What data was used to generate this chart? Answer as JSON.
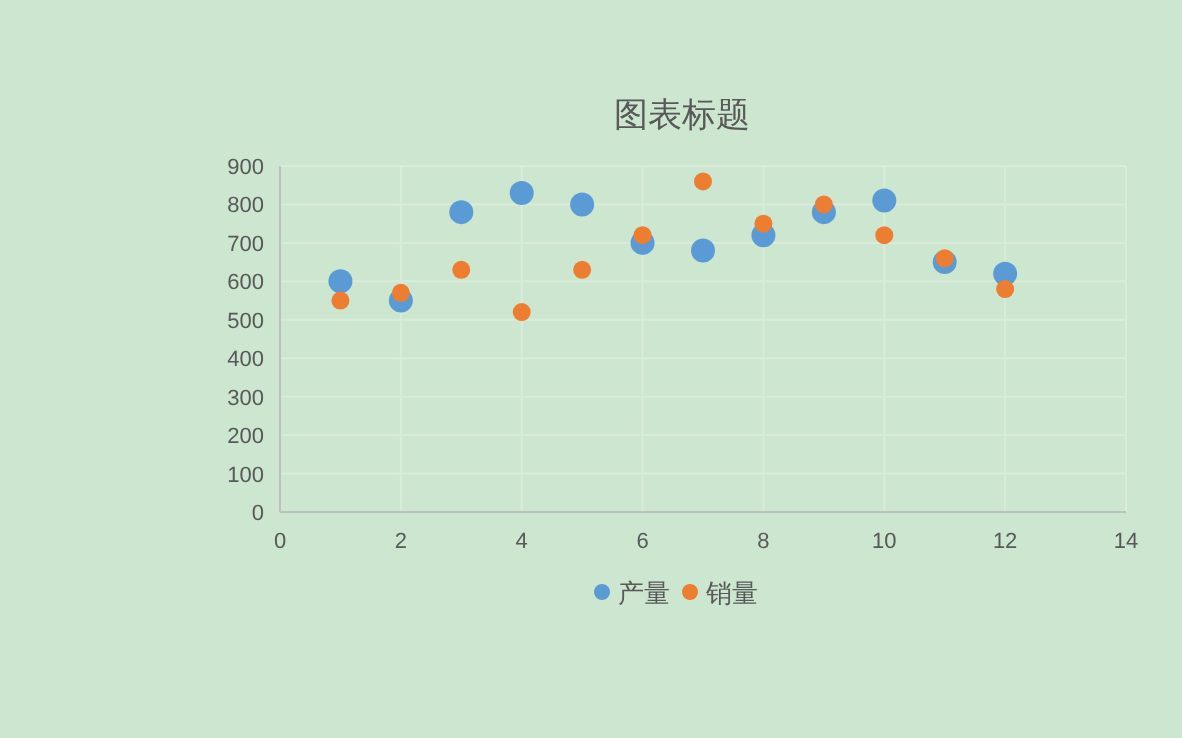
{
  "chart_data": {
    "type": "scatter",
    "title": "图表标题",
    "x": [
      1,
      2,
      3,
      4,
      5,
      6,
      7,
      8,
      9,
      10,
      11,
      12
    ],
    "series": [
      {
        "name": "产量",
        "color": "#5b9bd5",
        "values": [
          600,
          550,
          780,
          830,
          800,
          700,
          680,
          720,
          780,
          810,
          650,
          620
        ]
      },
      {
        "name": "销量",
        "color": "#ed7d31",
        "values": [
          550,
          570,
          630,
          520,
          630,
          720,
          860,
          750,
          800,
          720,
          660,
          580
        ]
      }
    ],
    "xlim": [
      0,
      14
    ],
    "xticks": [
      0,
      2,
      4,
      6,
      8,
      10,
      12,
      14
    ],
    "ylim": [
      0,
      900
    ],
    "yticks": [
      0,
      100,
      200,
      300,
      400,
      500,
      600,
      700,
      800,
      900
    ],
    "grid": true,
    "legend": "bottom",
    "marker": "circle"
  }
}
